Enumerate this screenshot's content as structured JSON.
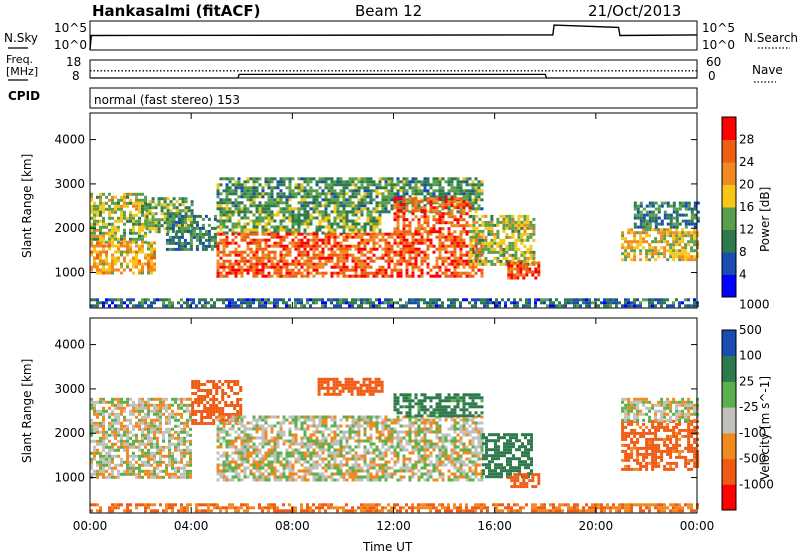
{
  "header": {
    "station": "Hankasalmi (fitACF)",
    "beam": "Beam 12",
    "date": "21/Oct/2013"
  },
  "top_panel": {
    "left_label": "N.Sky",
    "right_label": "N.Search",
    "left_ticks": [
      "10^5",
      "10^0"
    ],
    "right_ticks": [
      "10^5",
      "10^0"
    ]
  },
  "freq_panel": {
    "left_label_1": "Freq.",
    "left_label_2": "[MHz]",
    "left_ticks": [
      "18",
      "8"
    ],
    "right_label": "Nave",
    "right_ticks": [
      "60",
      "0"
    ]
  },
  "cpid": {
    "label": "CPID",
    "text": "normal (fast stereo) 153"
  },
  "colors": {
    "power": [
      "#0000ff",
      "#1a4bb0",
      "#2f7a4d",
      "#5aa04c",
      "#f6c619",
      "#f08a20",
      "#ef5f13",
      "#ff0000"
    ],
    "velocity": [
      "#ff0000",
      "#f05a12",
      "#f08a20",
      "#c0c0bc",
      "#5ab04c",
      "#2f7a4d",
      "#1a4bb0"
    ]
  },
  "chart_data": [
    {
      "type": "heatmap",
      "name": "power",
      "ylabel": "Slant Range [km]",
      "yticks": [
        "1000",
        "2000",
        "3000",
        "4000"
      ],
      "ylim": [
        200,
        4600
      ],
      "xlim": [
        0,
        24
      ],
      "colorbar_label": "Power [dB]",
      "colorbar_ticks": [
        "4",
        "8",
        "12",
        "16",
        "20",
        "24",
        "28"
      ],
      "colorbar_range": [
        0,
        32
      ],
      "regions": [
        {
          "t": [
            0.0,
            2.2
          ],
          "r": [
            1700,
            2800
          ],
          "v": 16
        },
        {
          "t": [
            0.0,
            2.5
          ],
          "r": [
            1000,
            1700
          ],
          "v": 20
        },
        {
          "t": [
            2.2,
            4.0
          ],
          "r": [
            1900,
            2700
          ],
          "v": 14
        },
        {
          "t": [
            3.0,
            5.0
          ],
          "r": [
            1500,
            2300
          ],
          "v": 10
        },
        {
          "t": [
            5.0,
            15.5
          ],
          "r": [
            2400,
            3150
          ],
          "v": 12
        },
        {
          "t": [
            5.0,
            11.5
          ],
          "r": [
            1900,
            2400
          ],
          "v": 14
        },
        {
          "t": [
            5.0,
            15.5
          ],
          "r": [
            950,
            1900
          ],
          "v": 26
        },
        {
          "t": [
            12.0,
            15.0
          ],
          "r": [
            1900,
            2700
          ],
          "v": 26
        },
        {
          "t": [
            15.0,
            17.5
          ],
          "r": [
            1200,
            2300
          ],
          "v": 16
        },
        {
          "t": [
            16.5,
            17.8
          ],
          "r": [
            900,
            1250
          ],
          "v": 27
        },
        {
          "t": [
            21.0,
            24.0
          ],
          "r": [
            1300,
            2000
          ],
          "v": 18
        },
        {
          "t": [
            21.5,
            24.0
          ],
          "r": [
            2000,
            2600
          ],
          "v": 10
        },
        {
          "t": [
            0.0,
            24.0
          ],
          "r": [
            220,
            420
          ],
          "v": 8
        }
      ],
      "mean_power": [
        18,
        17,
        15,
        16,
        14,
        22,
        24,
        25,
        25,
        26,
        25,
        24,
        25,
        26,
        25,
        22,
        18,
        20,
        0,
        0,
        0,
        14,
        15,
        15
      ]
    },
    {
      "type": "heatmap",
      "name": "velocity",
      "ylabel": "Slant Range [km]",
      "yticks": [
        "1000",
        "2000",
        "3000",
        "4000"
      ],
      "ylim": [
        200,
        4600
      ],
      "xlim": [
        0,
        24
      ],
      "xticks": [
        "00:00",
        "04:00",
        "08:00",
        "12:00",
        "16:00",
        "20:00",
        "00:00"
      ],
      "xlabel": "Time UT",
      "colorbar_label": "Velocity [m s^-1]",
      "colorbar_ticks": [
        "-1000",
        "-500",
        "-100",
        "-25",
        "25",
        "100",
        "500",
        "1000"
      ],
      "regions": [
        {
          "t": [
            0.0,
            4.0
          ],
          "r": [
            1000,
            2800
          ],
          "v": 0
        },
        {
          "t": [
            4.0,
            6.0
          ],
          "r": [
            2200,
            3200
          ],
          "v": -300
        },
        {
          "t": [
            5.0,
            15.5
          ],
          "r": [
            950,
            2400
          ],
          "v": 0
        },
        {
          "t": [
            9.0,
            11.5
          ],
          "r": [
            2900,
            3250
          ],
          "v": -300
        },
        {
          "t": [
            12.0,
            15.5
          ],
          "r": [
            2400,
            2900
          ],
          "v": 150
        },
        {
          "t": [
            15.5,
            17.5
          ],
          "r": [
            1000,
            2000
          ],
          "v": 200
        },
        {
          "t": [
            16.5,
            17.7
          ],
          "r": [
            800,
            1100
          ],
          "v": -300
        },
        {
          "t": [
            21.0,
            24.0
          ],
          "r": [
            1200,
            2300
          ],
          "v": -150
        },
        {
          "t": [
            21.0,
            24.0
          ],
          "r": [
            2300,
            2800
          ],
          "v": 0
        },
        {
          "t": [
            0.0,
            24.0
          ],
          "r": [
            220,
            420
          ],
          "v": -100
        }
      ]
    },
    {
      "type": "line",
      "name": "noise",
      "xlim": [
        0,
        24
      ],
      "series": [
        {
          "x": [
            0,
            0.05,
            18.3,
            18.35,
            20.9,
            20.95,
            24
          ],
          "y": [
            0.0,
            2.5,
            2.6,
            4.3,
            3.9,
            2.5,
            2.6
          ]
        }
      ]
    },
    {
      "type": "line",
      "name": "frequency-nave",
      "xlim": [
        0,
        24
      ],
      "series": [
        {
          "x": [
            0,
            24
          ],
          "y": [
            12.0,
            12.0
          ]
        },
        {
          "x": [
            0,
            5.85,
            5.9,
            18.0,
            18.05,
            24
          ],
          "y": [
            8.0,
            8.0,
            10.0,
            10.0,
            8.0,
            8.0
          ]
        }
      ]
    }
  ]
}
